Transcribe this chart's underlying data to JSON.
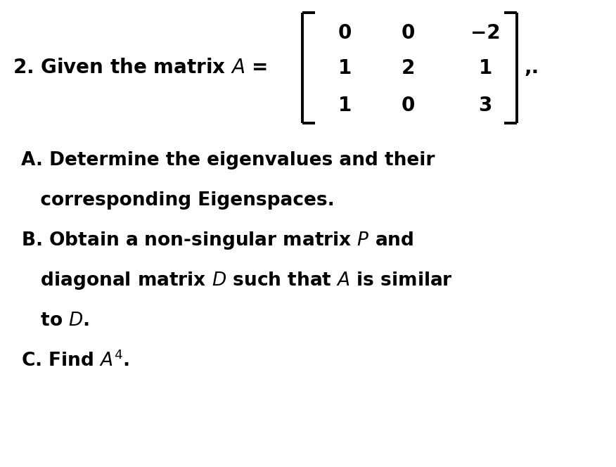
{
  "background_color": "#ffffff",
  "text_color": "#000000",
  "fig_width": 8.76,
  "fig_height": 6.64,
  "dpi": 100,
  "matrix_rows": [
    [
      "0",
      "0",
      "−2"
    ],
    [
      "1",
      "2",
      "1"
    ],
    [
      "1",
      "0",
      "3"
    ]
  ],
  "period_after_matrix": ",.",
  "item_A1": "A. Determine the eigenvalues and their",
  "item_A2": "   corresponding Eigenspaces.",
  "item_B1": "B. Obtain a non-singular matrix $P$ and",
  "item_B2": "   diagonal matrix $D$ such that $A$ is similar",
  "item_B3": "   to $D$.",
  "item_C": "C. Find $A^4$.",
  "font_size_header": 20,
  "font_size_items": 19,
  "font_weight": "bold"
}
